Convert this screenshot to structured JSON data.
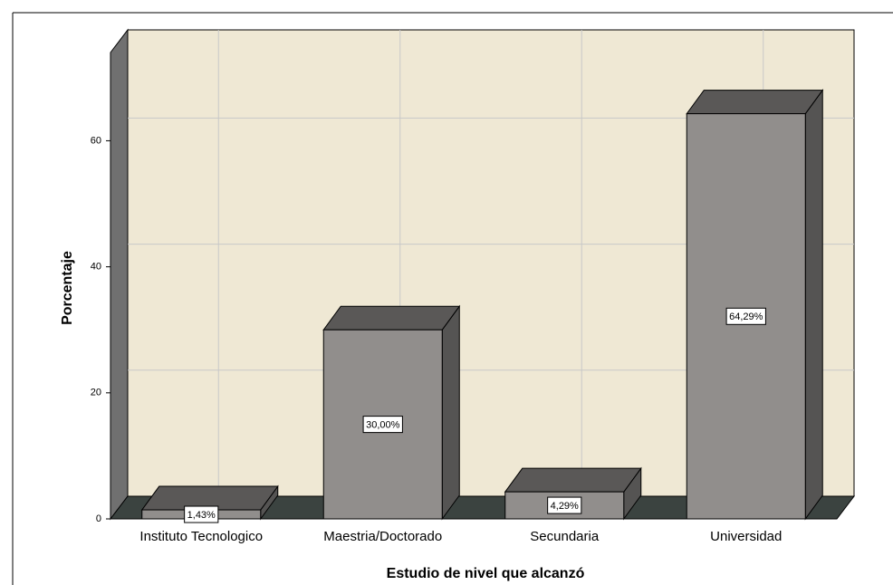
{
  "chart_data": {
    "type": "bar",
    "x_label": "Estudio de nivel que alcanzó",
    "y_label": "Porcentaje",
    "categories": [
      "Instituto Tecnologico",
      "Maestria/Doctorado",
      "Secundaria",
      "Universidad"
    ],
    "values": [
      1.43,
      30.0,
      4.29,
      64.29
    ],
    "value_labels": [
      "1,43%",
      "30,00%",
      "4,29%",
      "64,29%"
    ],
    "color": "#918e8c",
    "ylim": [
      0,
      74
    ],
    "yticks": [
      0,
      20,
      40,
      60
    ],
    "grid": true
  }
}
